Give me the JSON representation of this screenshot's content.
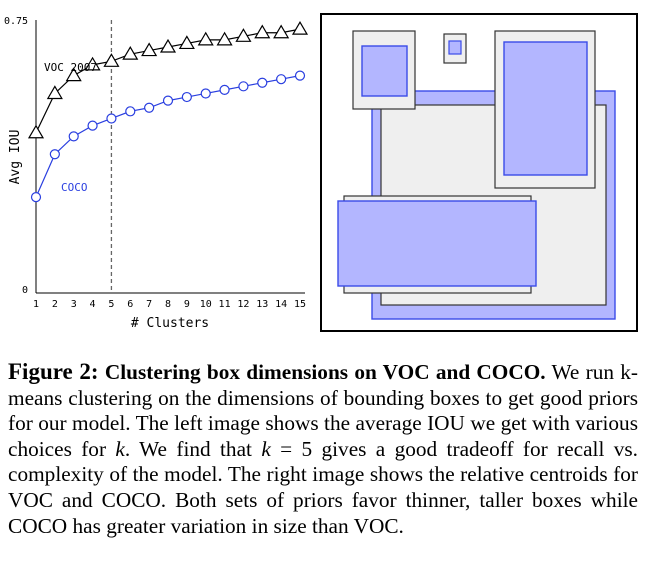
{
  "chart_data": {
    "type": "line",
    "x": [
      1,
      2,
      3,
      4,
      5,
      6,
      7,
      8,
      9,
      10,
      11,
      12,
      13,
      14,
      15
    ],
    "xlabel": "# Clusters",
    "ylabel": "Avg IOU",
    "xticks": [
      "1",
      "2",
      "3",
      "4",
      "5",
      "6",
      "7",
      "8",
      "9",
      "10",
      "11",
      "12",
      "13",
      "14",
      "15"
    ],
    "yticks": [
      "0",
      "0.75"
    ],
    "ylim": [
      0,
      0.75
    ],
    "xlim": [
      1,
      15
    ],
    "grid": false,
    "reference_line_x": 5,
    "series": [
      {
        "name": "VOC 2007",
        "marker": "triangle",
        "color": "#000000",
        "values": [
          0.44,
          0.55,
          0.6,
          0.63,
          0.64,
          0.66,
          0.67,
          0.68,
          0.69,
          0.7,
          0.7,
          0.71,
          0.72,
          0.72,
          0.73
        ]
      },
      {
        "name": "COCO",
        "marker": "circle",
        "color": "#2a3fe0",
        "values": [
          0.26,
          0.38,
          0.43,
          0.46,
          0.48,
          0.5,
          0.51,
          0.53,
          0.54,
          0.55,
          0.56,
          0.57,
          0.58,
          0.59,
          0.6
        ]
      }
    ]
  },
  "centroids": {
    "voc_color": "#555555",
    "coco_color": "#3b4be8",
    "coco_fill": "#b3b6ff",
    "voc_fill": "#efefef"
  },
  "caption": {
    "label": "Figure 2:",
    "title": "Clustering box dimensions on VOC and COCO.",
    "text_1": "We run k-means clustering on the dimensions of bounding boxes to get good priors for our model. The left image shows the average IOU we get with various choices for ",
    "k1": "k",
    "text_2": ". We find that ",
    "k2": "k",
    "eq": " = 5",
    "text_3": " gives a good tradeoff for recall vs. complexity of the model. The right image shows the relative centroids for VOC and COCO. Both sets of priors favor thinner, taller boxes while COCO has greater variation in size than VOC."
  }
}
